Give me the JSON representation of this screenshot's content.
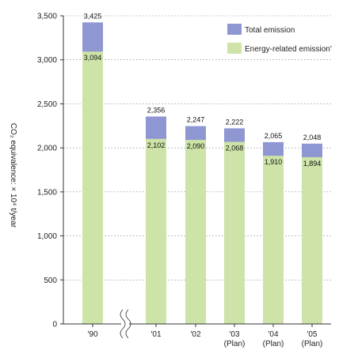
{
  "chart_data": {
    "type": "bar",
    "title": "",
    "ylabel": "CO₂ equivalence: × 10⁴ t/year",
    "xlabel": "",
    "ylim": [
      0,
      3500
    ],
    "yticks": [
      0,
      500,
      1000,
      1500,
      2000,
      2500,
      3000,
      3500
    ],
    "ytick_labels": [
      "0",
      "500",
      "1,000",
      "1,500",
      "2,000",
      "2,500",
      "3,000",
      "3,500"
    ],
    "grid": true,
    "axis_break_after_first_category": true,
    "legend_position": "top-right",
    "categories": [
      {
        "line1": "'90",
        "line2": ""
      },
      {
        "line1": "'01",
        "line2": ""
      },
      {
        "line1": "'02",
        "line2": ""
      },
      {
        "line1": "'03",
        "line2": "(Plan)"
      },
      {
        "line1": "'04",
        "line2": "(Plan)"
      },
      {
        "line1": "'05",
        "line2": "(Plan)"
      }
    ],
    "series": [
      {
        "name": "Total emission",
        "color": "#8f97d2",
        "values": [
          3425,
          2356,
          2247,
          2222,
          2065,
          2048
        ],
        "labels": [
          "3,425",
          "2,356",
          "2,247",
          "2,222",
          "2,065",
          "2,048"
        ]
      },
      {
        "name": "Energy-related emission",
        "color": "#cde3a8",
        "values": [
          3094,
          2102,
          2090,
          2068,
          1910,
          1894
        ],
        "labels": [
          "3,094",
          "2,102",
          "2,090",
          "2,068",
          "1,910",
          "1,894"
        ]
      }
    ],
    "legend_labels": [
      "Total emission",
      "Energy-related emission'"
    ]
  }
}
